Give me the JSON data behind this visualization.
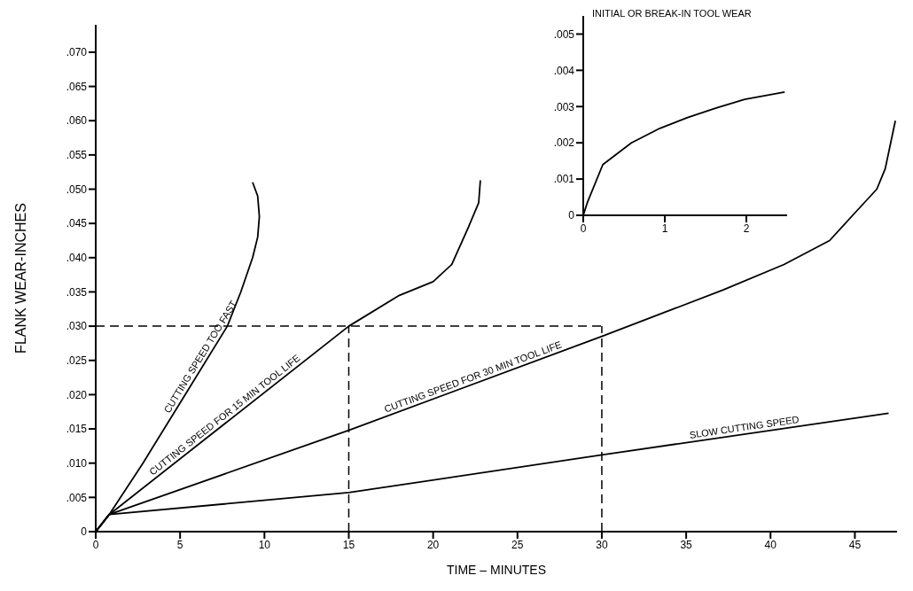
{
  "chart_data": [
    {
      "type": "line",
      "xlabel": "TIME – MINUTES",
      "ylabel": "FLANK WEAR-INCHES",
      "xlim": [
        0,
        47.5
      ],
      "ylim": [
        0,
        0.074
      ],
      "xticks": [
        0,
        5,
        10,
        15,
        20,
        25,
        30,
        35,
        40,
        45
      ],
      "yticks": [
        0,
        {
          "value": 0.005,
          "label": ".005"
        },
        {
          "value": 0.01,
          "label": ".010"
        },
        {
          "value": 0.015,
          "label": ".015"
        },
        {
          "value": 0.02,
          "label": ".020"
        },
        {
          "value": 0.025,
          "label": ".025"
        },
        {
          "value": 0.03,
          "label": ".030"
        },
        {
          "value": 0.035,
          "label": ".035"
        },
        {
          "value": 0.04,
          "label": ".040"
        },
        {
          "value": 0.045,
          "label": ".045"
        },
        {
          "value": 0.05,
          "label": ".050"
        },
        {
          "value": 0.055,
          "label": ".055"
        },
        {
          "value": 0.06,
          "label": ".060"
        },
        {
          "value": 0.065,
          "label": ".065"
        },
        {
          "value": 0.07,
          "label": ".070"
        }
      ],
      "grid": false,
      "legend": false,
      "marker": "none",
      "line_style": "solid",
      "series": [
        {
          "name": "CUTTING SPEED TOO FAST",
          "color": "#000000",
          "x": [
            0,
            0.8,
            2.8,
            5.3,
            7.8,
            8.6,
            9.3,
            9.6,
            9.7,
            9.6,
            9.3
          ],
          "values": [
            0,
            0.0025,
            0.01,
            0.02,
            0.03,
            0.035,
            0.04,
            0.043,
            0.046,
            0.049,
            0.051
          ]
        },
        {
          "name": "CUTTING SPEED FOR 15 MIN TOOL LIFE",
          "color": "#000000",
          "x": [
            0,
            0.8,
            15,
            18,
            20,
            21.1,
            22.1,
            22.7,
            22.8
          ],
          "values": [
            0,
            0.0025,
            0.03,
            0.0345,
            0.0365,
            0.039,
            0.0445,
            0.048,
            0.0513
          ]
        },
        {
          "name": "CUTTING SPEED FOR 30 MIN TOOL LIFE",
          "color": "#000000",
          "x": [
            0,
            0.8,
            15,
            30,
            37.2,
            40.8,
            43.5,
            45.1,
            46.3,
            46.8,
            47.4
          ],
          "values": [
            0,
            0.0025,
            0.0148,
            0.0285,
            0.0353,
            0.039,
            0.0425,
            0.0468,
            0.05,
            0.053,
            0.06
          ]
        },
        {
          "name": "SLOW CUTTING SPEED",
          "color": "#000000",
          "x": [
            0,
            0.8,
            15,
            30,
            47
          ],
          "values": [
            0,
            0.0025,
            0.0057,
            0.0112,
            0.0173
          ]
        }
      ],
      "ref_lines": [
        {
          "axis": "y",
          "value": 0.03,
          "line_style": "dashed",
          "color": "#000000"
        },
        {
          "axis": "x",
          "value": 15,
          "line_style": "dashed",
          "color": "#000000"
        },
        {
          "axis": "x",
          "value": 30,
          "line_style": "dashed",
          "color": "#000000"
        }
      ]
    },
    {
      "type": "line",
      "title": "INITIAL OR BREAK-IN TOOL WEAR",
      "xlim": [
        0,
        2.5
      ],
      "ylim": [
        0,
        0.0055
      ],
      "xticks": [
        0,
        1,
        2
      ],
      "yticks": [
        0,
        {
          "value": 0.001,
          "label": ".001"
        },
        {
          "value": 0.002,
          "label": ".002"
        },
        {
          "value": 0.003,
          "label": ".003"
        },
        {
          "value": 0.004,
          "label": ".004"
        },
        {
          "value": 0.005,
          "label": ".005"
        }
      ],
      "grid": false,
      "legend": false,
      "marker": "none",
      "line_style": "solid",
      "series": [
        {
          "color": "#000000",
          "x": [
            0,
            0.05,
            0.24,
            0.59,
            0.94,
            1.28,
            1.63,
            1.98,
            2.47
          ],
          "values": [
            0,
            0.00035,
            0.0014,
            0.002,
            0.0024,
            0.0027,
            0.00296,
            0.0032,
            0.0034
          ]
        }
      ]
    }
  ]
}
